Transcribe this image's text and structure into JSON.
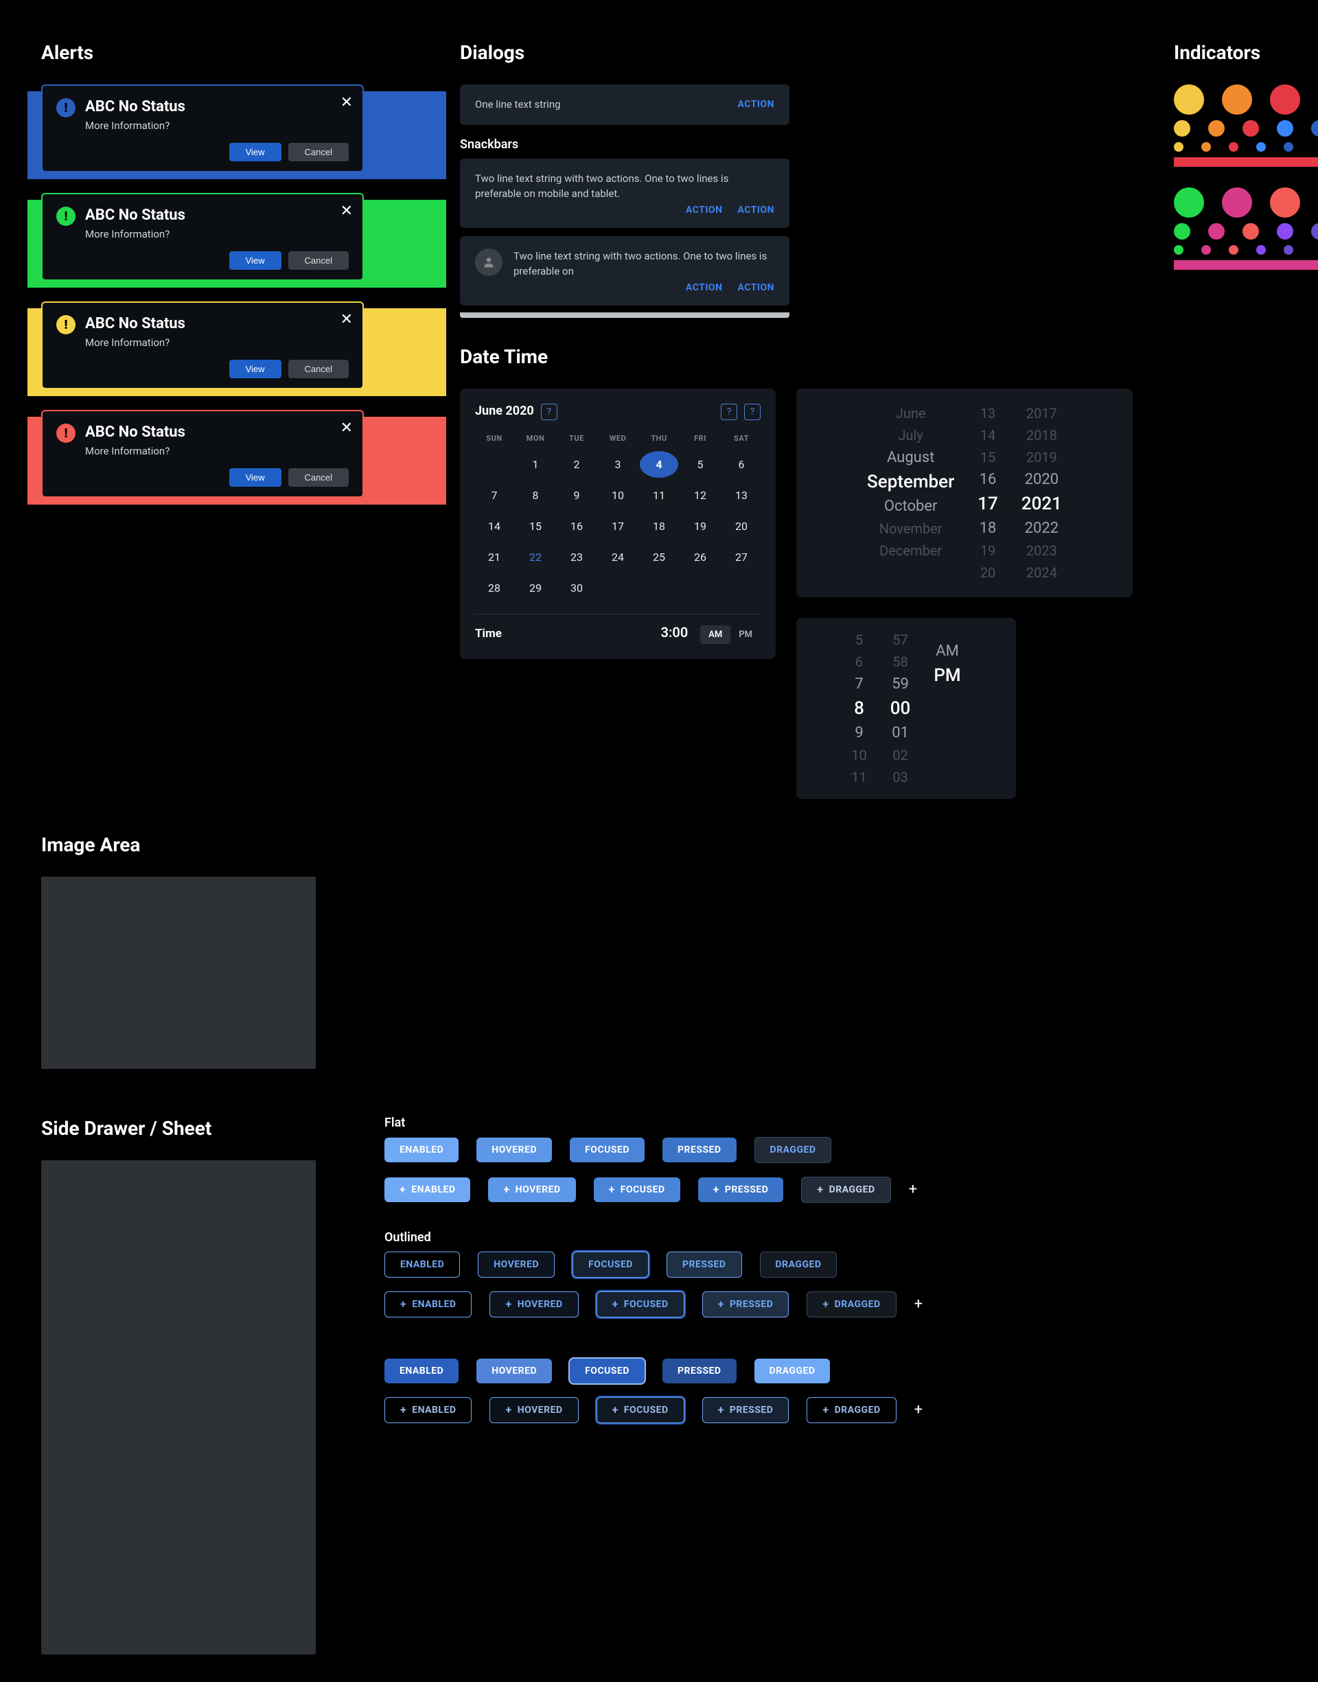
{
  "sections": {
    "alerts": "Alerts",
    "dialogs": "Dialogs",
    "indicators": "Indicators",
    "snackbars": "Snackbars",
    "datetime": "Date Time",
    "imagearea": "Image Area",
    "sidedrawer": "Side Drawer / Sheet",
    "chips_flat": "Flat",
    "chips_outlined": "Outlined"
  },
  "alert": {
    "title": "ABC No Status",
    "subtitle": "More Information?",
    "view": "View",
    "cancel": "Cancel",
    "close_glyph": "✕",
    "bang_glyph": "!",
    "variants": [
      {
        "border": "#2a5fbf",
        "icon_bg": "#2a5fbf",
        "accent_bg": "#2a5fbf"
      },
      {
        "border": "#21d94a",
        "icon_bg": "#21d94a",
        "accent_bg": "#21d94a"
      },
      {
        "border": "#f5d547",
        "icon_bg": "#f5d547",
        "accent_bg": "#f5d547"
      },
      {
        "border": "#f25c54",
        "icon_bg": "#f25c54",
        "accent_bg": "#f25c54"
      }
    ]
  },
  "dialog1": {
    "text": "One line text string",
    "action": "ACTION"
  },
  "dialog2": {
    "text": "Two line text string with two actions. One to two lines is preferable on mobile and tablet.",
    "action": "ACTION"
  },
  "dialog3": {
    "text": "Two line text string with two actions. One to two lines is preferable on",
    "action": "ACTION"
  },
  "indicator_rows": [
    {
      "colors": [
        "#f2c744",
        "#f28a2e",
        "#e63946",
        "#3a86ff",
        "#2a5fbf"
      ],
      "accent": "#e63946"
    },
    {
      "colors": [
        "#21d94a",
        "#d83a8a",
        "#f25c54",
        "#8a4af5",
        "#6a4ccf"
      ],
      "accent": "#d83a8a"
    }
  ],
  "calendar": {
    "title": "June 2020",
    "dow": [
      "SUN",
      "MON",
      "TUE",
      "WED",
      "THU",
      "FRI",
      "SAT"
    ],
    "days": [
      [
        "",
        "1",
        "2",
        "3",
        "4",
        "5",
        "6"
      ],
      [
        "7",
        "8",
        "9",
        "10",
        "11",
        "12",
        "13"
      ],
      [
        "14",
        "15",
        "16",
        "17",
        "18",
        "19",
        "20"
      ],
      [
        "21",
        "22",
        "23",
        "24",
        "25",
        "26",
        "27"
      ],
      [
        "28",
        "29",
        "30",
        "",
        "",
        "",
        ""
      ]
    ],
    "selected": "4",
    "today_link": "22",
    "time_label": "Time",
    "time_value": "3:00",
    "am": "AM",
    "pm": "PM",
    "ampm_selected": "AM"
  },
  "datewheel": {
    "months": [
      "June",
      "July",
      "August",
      "September",
      "October",
      "November",
      "December"
    ],
    "days": [
      "13",
      "14",
      "15",
      "16",
      "17",
      "18",
      "19",
      "20"
    ],
    "years": [
      "2017",
      "2018",
      "2019",
      "2020",
      "2021",
      "2022",
      "2023",
      "2024"
    ],
    "sel": {
      "month": "September",
      "day": "17",
      "year": "2021"
    }
  },
  "timewheel": {
    "hours": [
      "5",
      "6",
      "7",
      "8",
      "9",
      "10",
      "11"
    ],
    "mins": [
      "57",
      "58",
      "59",
      "00",
      "01",
      "02",
      "03"
    ],
    "ampm": [
      "",
      "",
      "AM",
      "PM",
      "",
      "",
      ""
    ],
    "sel": {
      "hour": "8",
      "min": "00",
      "ampm": "PM"
    }
  },
  "chip_states": [
    "ENABLED",
    "HOVERED",
    "FOCUSED",
    "PRESSED",
    "DRAGGED"
  ],
  "plus_glyph": "+",
  "qmark_glyph": "?",
  "divider_glyph": "|"
}
